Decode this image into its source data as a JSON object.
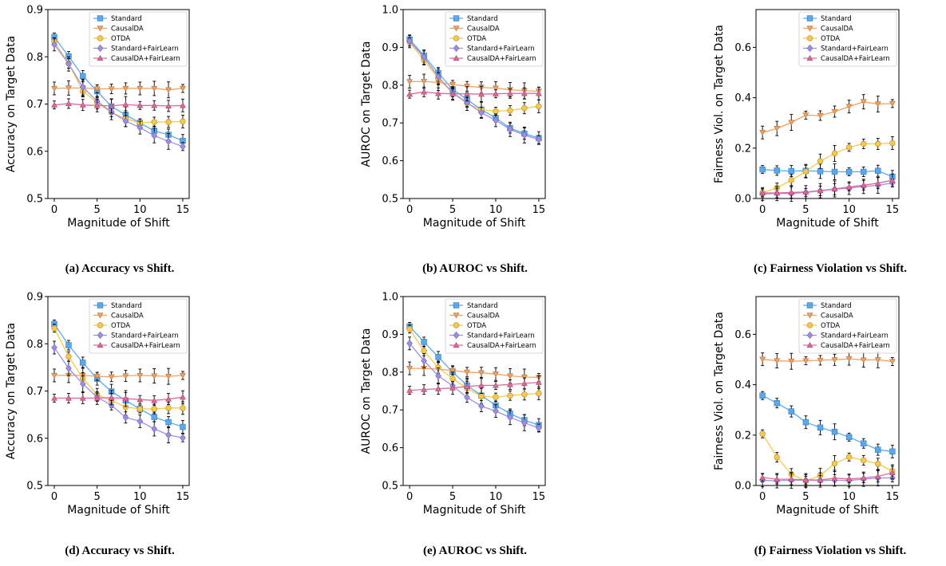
{
  "colors": {
    "Standard": "#5aa9f0",
    "CausalDA": "#f4a05f",
    "OTDA": "#f7c84a",
    "Standard+FairLearn": "#9e8ee8",
    "CausalDA+FairLearn": "#e2689a"
  },
  "markers": {
    "Standard": "square",
    "CausalDA": "triangle-down",
    "OTDA": "circle",
    "Standard+FairLearn": "diamond",
    "CausalDA+FairLearn": "triangle-up"
  },
  "chart_data": [
    {
      "type": "line",
      "caption": "(a) Accuracy vs Shift.",
      "xlabel": "Magnitude of Shift",
      "ylabel": "Accuracy on Target Data",
      "xlim": [
        -0.75,
        15.75
      ],
      "ylim": [
        0.5,
        0.9
      ],
      "xticks": [
        "0",
        "5",
        "10",
        "15"
      ],
      "yticks": [
        "0.5",
        "0.6",
        "0.7",
        "0.8",
        "0.9"
      ],
      "legend_position": "top-right",
      "x": [
        0,
        1.67,
        3.33,
        5,
        6.67,
        8.33,
        10,
        11.67,
        13.33,
        15
      ],
      "series": [
        {
          "name": "Standard",
          "values": [
            0.842,
            0.801,
            0.759,
            0.727,
            0.695,
            0.677,
            0.66,
            0.643,
            0.635,
            0.622
          ]
        },
        {
          "name": "CausalDA",
          "values": [
            0.733,
            0.734,
            0.734,
            0.732,
            0.732,
            0.733,
            0.733,
            0.733,
            0.73,
            0.733
          ]
        },
        {
          "name": "OTDA",
          "values": [
            0.832,
            0.786,
            0.727,
            0.703,
            0.682,
            0.669,
            0.66,
            0.662,
            0.662,
            0.663
          ]
        },
        {
          "name": "Standard+FairLearn",
          "values": [
            0.826,
            0.785,
            0.736,
            0.706,
            0.683,
            0.664,
            0.65,
            0.633,
            0.621,
            0.61
          ]
        },
        {
          "name": "CausalDA+FairLearn",
          "values": [
            0.698,
            0.701,
            0.698,
            0.697,
            0.696,
            0.699,
            0.697,
            0.697,
            0.696,
            0.697
          ]
        }
      ]
    },
    {
      "type": "line",
      "caption": "(b) AUROC vs Shift.",
      "xlabel": "Magnitude of Shift",
      "ylabel": "AUROC on Target Data",
      "xlim": [
        -0.75,
        15.75
      ],
      "ylim": [
        0.5,
        1.0
      ],
      "xticks": [
        "0",
        "5",
        "10",
        "15"
      ],
      "yticks": [
        "0.5",
        "0.6",
        "0.7",
        "0.8",
        "0.9",
        "1.0"
      ],
      "legend_position": "top-right",
      "x": [
        0,
        1.67,
        3.33,
        5,
        6.67,
        8.33,
        10,
        11.67,
        13.33,
        15
      ],
      "series": [
        {
          "name": "Standard",
          "values": [
            0.921,
            0.878,
            0.832,
            0.789,
            0.762,
            0.735,
            0.713,
            0.686,
            0.672,
            0.66
          ]
        },
        {
          "name": "CausalDA",
          "values": [
            0.809,
            0.81,
            0.807,
            0.802,
            0.797,
            0.794,
            0.792,
            0.788,
            0.785,
            0.784
          ]
        },
        {
          "name": "OTDA",
          "values": [
            0.914,
            0.866,
            0.818,
            0.779,
            0.752,
            0.735,
            0.731,
            0.733,
            0.739,
            0.744
          ]
        },
        {
          "name": "Standard+FairLearn",
          "values": [
            0.916,
            0.874,
            0.822,
            0.78,
            0.754,
            0.727,
            0.707,
            0.683,
            0.668,
            0.656
          ]
        },
        {
          "name": "CausalDA+FairLearn",
          "values": [
            0.776,
            0.782,
            0.778,
            0.777,
            0.777,
            0.776,
            0.777,
            0.778,
            0.778,
            0.778
          ]
        }
      ]
    },
    {
      "type": "line",
      "caption": "(c) Fairness Violation vs Shift.",
      "xlabel": "Magnitude of Shift",
      "ylabel": "Fairness Viol. on Target Data",
      "xlim": [
        -0.75,
        15.75
      ],
      "ylim": [
        0.0,
        0.75
      ],
      "xticks": [
        "0",
        "5",
        "10",
        "15"
      ],
      "yticks": [
        "0.0",
        "0.2",
        "0.4",
        "0.6"
      ],
      "legend_position": "top-right",
      "x": [
        0,
        1.67,
        3.33,
        5,
        6.67,
        8.33,
        10,
        11.67,
        13.33,
        15
      ],
      "series": [
        {
          "name": "Standard",
          "values": [
            0.115,
            0.111,
            0.109,
            0.11,
            0.108,
            0.106,
            0.106,
            0.106,
            0.11,
            0.086
          ]
        },
        {
          "name": "CausalDA",
          "values": [
            0.262,
            0.278,
            0.302,
            0.331,
            0.329,
            0.345,
            0.365,
            0.384,
            0.375,
            0.377
          ]
        },
        {
          "name": "OTDA",
          "values": [
            0.023,
            0.042,
            0.073,
            0.107,
            0.148,
            0.179,
            0.203,
            0.217,
            0.217,
            0.22
          ]
        },
        {
          "name": "Standard+FairLearn",
          "values": [
            0.018,
            0.02,
            0.02,
            0.024,
            0.03,
            0.037,
            0.041,
            0.048,
            0.052,
            0.062
          ]
        },
        {
          "name": "CausalDA+FairLearn",
          "values": [
            0.022,
            0.022,
            0.024,
            0.026,
            0.031,
            0.038,
            0.046,
            0.053,
            0.061,
            0.072
          ]
        }
      ]
    },
    {
      "type": "line",
      "caption": "(d) Accuracy vs Shift.",
      "xlabel": "Magnitude of Shift",
      "ylabel": "Accuracy on Target Data",
      "xlim": [
        -0.75,
        15.75
      ],
      "ylim": [
        0.5,
        0.9
      ],
      "xticks": [
        "0",
        "5",
        "10",
        "15"
      ],
      "yticks": [
        "0.5",
        "0.6",
        "0.7",
        "0.8",
        "0.9"
      ],
      "legend_position": "top-right",
      "x": [
        0,
        1.67,
        3.33,
        5,
        6.67,
        8.33,
        10,
        11.67,
        13.33,
        15
      ],
      "series": [
        {
          "name": "Standard",
          "values": [
            0.842,
            0.797,
            0.76,
            0.726,
            0.699,
            0.68,
            0.662,
            0.645,
            0.634,
            0.624
          ]
        },
        {
          "name": "CausalDA",
          "values": [
            0.733,
            0.733,
            0.733,
            0.731,
            0.73,
            0.732,
            0.733,
            0.732,
            0.731,
            0.733
          ]
        },
        {
          "name": "OTDA",
          "values": [
            0.833,
            0.773,
            0.727,
            0.692,
            0.68,
            0.666,
            0.662,
            0.662,
            0.664,
            0.664
          ]
        },
        {
          "name": "Standard+FairLearn",
          "values": [
            0.792,
            0.748,
            0.715,
            0.687,
            0.67,
            0.644,
            0.636,
            0.62,
            0.607,
            0.601
          ]
        },
        {
          "name": "CausalDA+FairLearn",
          "values": [
            0.685,
            0.685,
            0.685,
            0.685,
            0.686,
            0.684,
            0.682,
            0.68,
            0.683,
            0.687
          ]
        }
      ]
    },
    {
      "type": "line",
      "caption": "(e) AUROC vs Shift.",
      "xlabel": "Magnitude of Shift",
      "ylabel": "AUROC on Target Data",
      "xlim": [
        -0.75,
        15.75
      ],
      "ylim": [
        0.5,
        1.0
      ],
      "xticks": [
        "0",
        "5",
        "10",
        "15"
      ],
      "yticks": [
        "0.5",
        "0.6",
        "0.7",
        "0.8",
        "0.9",
        "1.0"
      ],
      "legend_position": "top-right",
      "x": [
        0,
        1.67,
        3.33,
        5,
        6.67,
        8.33,
        10,
        11.67,
        13.33,
        15
      ],
      "series": [
        {
          "name": "Standard",
          "values": [
            0.921,
            0.88,
            0.84,
            0.8,
            0.765,
            0.738,
            0.712,
            0.69,
            0.673,
            0.66
          ]
        },
        {
          "name": "CausalDA",
          "values": [
            0.81,
            0.81,
            0.808,
            0.804,
            0.8,
            0.798,
            0.795,
            0.79,
            0.787,
            0.786
          ]
        },
        {
          "name": "OTDA",
          "values": [
            0.914,
            0.856,
            0.812,
            0.783,
            0.757,
            0.736,
            0.734,
            0.738,
            0.741,
            0.744
          ]
        },
        {
          "name": "Standard+FairLearn",
          "values": [
            0.876,
            0.83,
            0.79,
            0.764,
            0.733,
            0.71,
            0.697,
            0.68,
            0.666,
            0.652
          ]
        },
        {
          "name": "CausalDA+FairLearn",
          "values": [
            0.752,
            0.754,
            0.756,
            0.758,
            0.762,
            0.765,
            0.765,
            0.767,
            0.77,
            0.773
          ]
        }
      ]
    },
    {
      "type": "line",
      "caption": "(f) Fairness Violation vs Shift.",
      "xlabel": "Magnitude of Shift",
      "ylabel": "Fairness Viol. on Target Data",
      "xlim": [
        -0.75,
        15.75
      ],
      "ylim": [
        0.0,
        0.75
      ],
      "xticks": [
        "0",
        "5",
        "10",
        "15"
      ],
      "yticks": [
        "0.0",
        "0.2",
        "0.4",
        "0.6"
      ],
      "legend_position": "top-right",
      "x": [
        0,
        1.67,
        3.33,
        5,
        6.67,
        8.33,
        10,
        11.67,
        13.33,
        15
      ],
      "series": [
        {
          "name": "Standard",
          "values": [
            0.357,
            0.327,
            0.294,
            0.251,
            0.23,
            0.213,
            0.192,
            0.167,
            0.142,
            0.135
          ]
        },
        {
          "name": "CausalDA",
          "values": [
            0.501,
            0.495,
            0.493,
            0.495,
            0.497,
            0.499,
            0.503,
            0.498,
            0.499,
            0.492
          ]
        },
        {
          "name": "OTDA",
          "values": [
            0.205,
            0.112,
            0.045,
            0.018,
            0.04,
            0.087,
            0.113,
            0.1,
            0.086,
            0.057
          ]
        },
        {
          "name": "Standard+FairLearn",
          "values": [
            0.02,
            0.019,
            0.021,
            0.021,
            0.02,
            0.021,
            0.02,
            0.025,
            0.03,
            0.03
          ]
        },
        {
          "name": "CausalDA+FairLearn",
          "values": [
            0.032,
            0.025,
            0.025,
            0.022,
            0.022,
            0.029,
            0.026,
            0.03,
            0.036,
            0.051
          ]
        }
      ]
    }
  ]
}
